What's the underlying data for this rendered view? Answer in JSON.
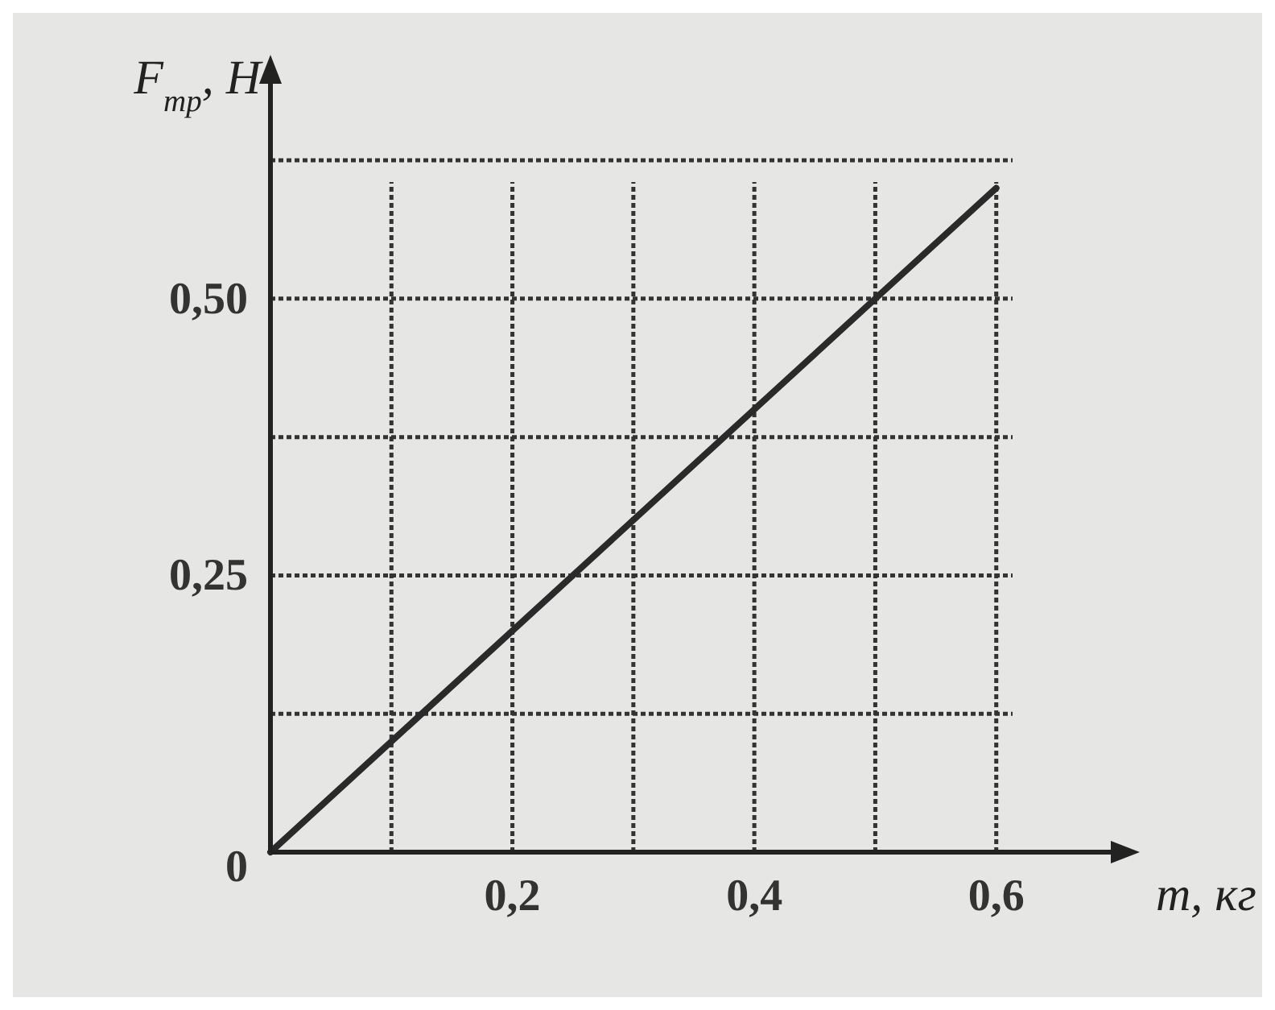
{
  "chart_data": {
    "type": "line",
    "xlabel": "m, кг",
    "ylabel": "F$_{тр}$, Н",
    "x": [
      0,
      0.6
    ],
    "series": [
      {
        "color": "#2a2a2a",
        "values": [
          0,
          0.6
        ]
      }
    ],
    "xlim": [
      0,
      0.7
    ],
    "ylim": [
      0,
      0.7
    ],
    "xticks": [
      {
        "value": 0.1,
        "label": null
      },
      {
        "value": 0.2,
        "label": "0,2"
      },
      {
        "value": 0.3,
        "label": null
      },
      {
        "value": 0.4,
        "label": "0,4"
      },
      {
        "value": 0.5,
        "label": null
      },
      {
        "value": 0.6,
        "label": "0,6"
      }
    ],
    "yticks": [
      {
        "value": 0,
        "label": "0"
      },
      {
        "value": 0.125,
        "label": null
      },
      {
        "value": 0.25,
        "label": "0,25"
      },
      {
        "value": 0.375,
        "label": null
      },
      {
        "value": 0.5,
        "label": "0,50"
      },
      {
        "value": 0.625,
        "label": null
      }
    ],
    "grid": true,
    "marker": "none",
    "line_style": "solid"
  }
}
